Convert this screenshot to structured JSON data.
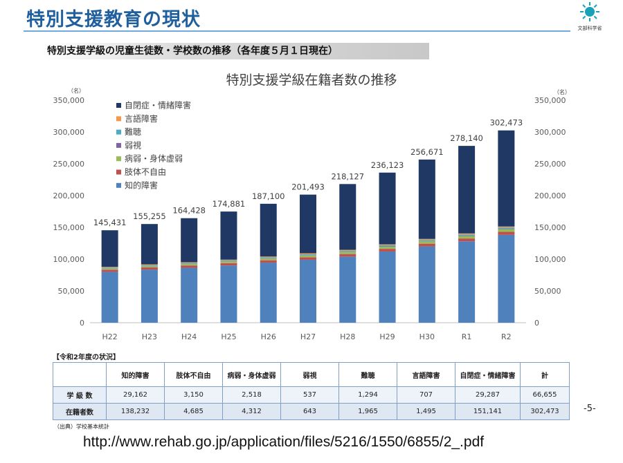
{
  "header": {
    "title": "特別支援教育の現状",
    "logo_caption": "文部科学省",
    "section_label": "特別支援学級の児童生徒数・学校数の推移（各年度５月１日現在）"
  },
  "chart_data": {
    "type": "bar",
    "stacked": true,
    "title": "特別支援学級在籍者数の推移",
    "unit_left": "（名）",
    "unit_right": "（名）",
    "categories": [
      "H22",
      "H23",
      "H24",
      "H25",
      "H26",
      "H27",
      "H28",
      "H29",
      "H30",
      "R1",
      "R2"
    ],
    "totals": [
      145431,
      155255,
      164428,
      174881,
      187100,
      201493,
      218127,
      236123,
      256671,
      278140,
      302473
    ],
    "totals_labels": [
      "145,431",
      "155,255",
      "164,428",
      "174,881",
      "187,100",
      "201,493",
      "218,127",
      "236,123",
      "256,671",
      "278,140",
      "302,473"
    ],
    "ylim": [
      0,
      350000
    ],
    "yticks": [
      0,
      50000,
      100000,
      150000,
      200000,
      250000,
      300000,
      350000
    ],
    "ytick_labels": [
      "0",
      "50,000",
      "100,000",
      "150,000",
      "200,000",
      "250,000",
      "300,000",
      "350,000"
    ],
    "legend_position": "top-left",
    "series": [
      {
        "name": "知的障害",
        "color": "#4f81bd",
        "values": [
          80000,
          83500,
          86500,
          90000,
          94500,
          99000,
          104000,
          112000,
          120000,
          128000,
          138232
        ]
      },
      {
        "name": "肢体不自由",
        "color": "#c0504d",
        "values": [
          3300,
          3400,
          3500,
          3600,
          3700,
          3900,
          4000,
          4200,
          4300,
          4500,
          4685
        ]
      },
      {
        "name": "病弱・身体虚弱",
        "color": "#9bbb59",
        "values": [
          1800,
          2000,
          2200,
          2400,
          2600,
          2900,
          3100,
          3300,
          3600,
          3900,
          4312
        ]
      },
      {
        "name": "弱視",
        "color": "#8064a2",
        "values": [
          400,
          450,
          480,
          500,
          530,
          560,
          580,
          600,
          610,
          630,
          643
        ]
      },
      {
        "name": "難聴",
        "color": "#4bacc6",
        "values": [
          1200,
          1250,
          1300,
          1400,
          1450,
          1500,
          1600,
          1700,
          1800,
          1900,
          1965
        ]
      },
      {
        "name": "言語障害",
        "color": "#f79646",
        "values": [
          1100,
          1150,
          1200,
          1250,
          1300,
          1350,
          1400,
          1450,
          1500,
          1500,
          1495
        ]
      },
      {
        "name": "自閉症・情緒障害",
        "color": "#1f3864",
        "values": [
          57631,
          63505,
          69248,
          75731,
          83020,
          92283,
          103447,
          112873,
          124861,
          137710,
          151141
        ]
      }
    ]
  },
  "status_table": {
    "title": "【令和2年度の状況】",
    "columns": [
      "知的障害",
      "肢体不自由",
      "病弱・身体虚弱",
      "弱視",
      "難聴",
      "言語障害",
      "自閉症・情緒障害",
      "計"
    ],
    "rows": [
      {
        "label": "学 級 数",
        "values": [
          "29,162",
          "3,150",
          "2,518",
          "537",
          "1,294",
          "707",
          "29,287",
          "66,655"
        ]
      },
      {
        "label": "在籍者数",
        "values": [
          "138,232",
          "4,685",
          "4,312",
          "643",
          "1,965",
          "1,495",
          "151,141",
          "302,473"
        ]
      }
    ]
  },
  "page_number": "-5-",
  "source_note": "（出典）学校基本統計",
  "url": "http://www.rehab.go.jp/application/files/5216/1550/6855/2_.pdf"
}
